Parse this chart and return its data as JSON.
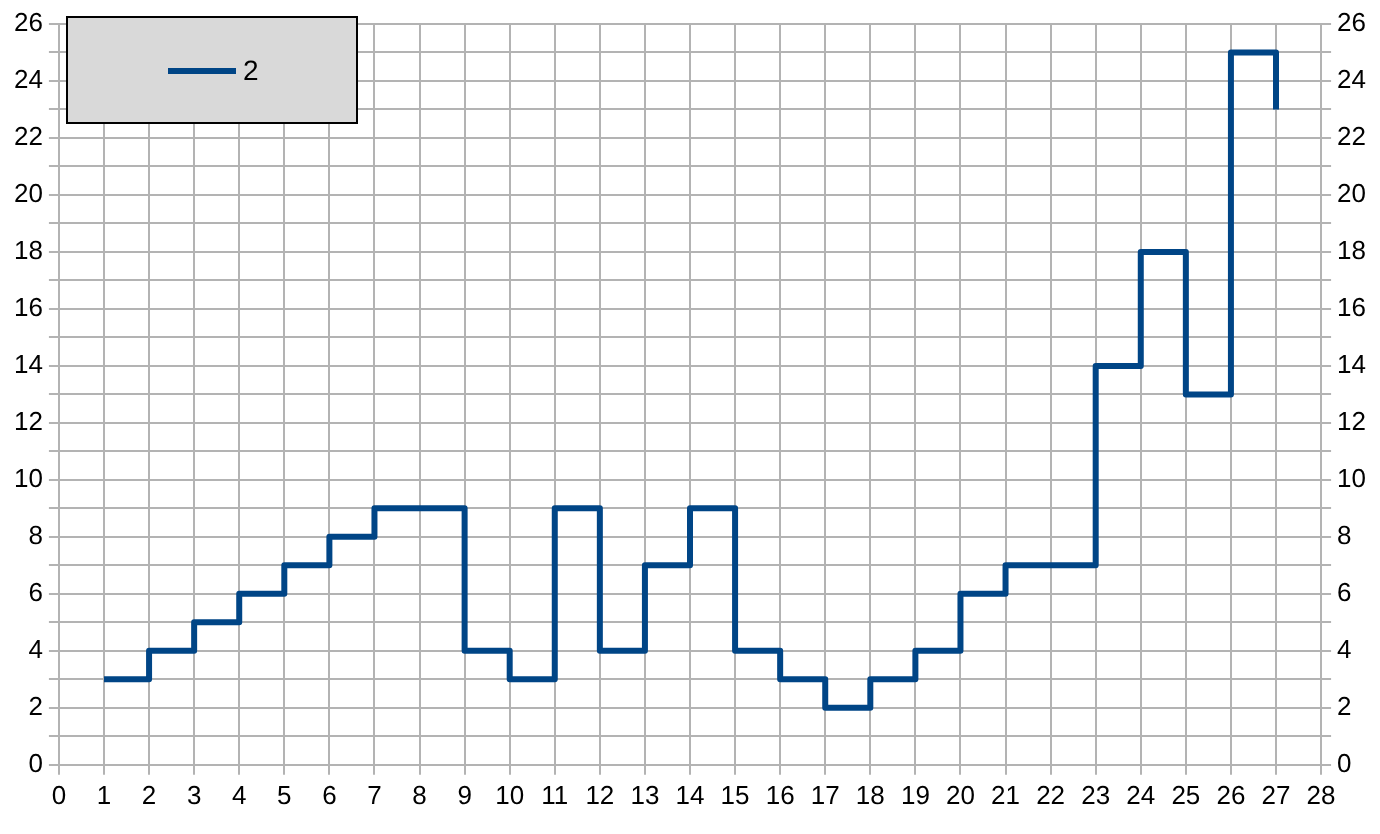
{
  "chart_data": {
    "type": "step",
    "x": [
      1,
      2,
      3,
      4,
      5,
      6,
      7,
      8,
      9,
      10,
      11,
      12,
      13,
      14,
      15,
      16,
      17,
      18,
      19,
      20,
      21,
      22,
      23,
      24,
      25,
      26,
      27
    ],
    "series": [
      {
        "name": "2",
        "color": "#004586",
        "values": [
          3,
          4,
          5,
          6,
          7,
          8,
          9,
          9,
          4,
          3,
          9,
          4,
          7,
          9,
          4,
          3,
          2,
          3,
          4,
          6,
          7,
          7,
          14,
          18,
          13,
          25,
          23
        ]
      }
    ],
    "xlim": [
      0,
      28
    ],
    "xticks": [
      0,
      1,
      2,
      3,
      4,
      5,
      6,
      7,
      8,
      9,
      10,
      11,
      12,
      13,
      14,
      15,
      16,
      17,
      18,
      19,
      20,
      21,
      22,
      23,
      24,
      25,
      26,
      27,
      28
    ],
    "ylim": [
      0,
      26
    ],
    "yticks": [
      0,
      {
        "value": 1,
        "label": null
      },
      2,
      {
        "value": 3,
        "label": null
      },
      4,
      {
        "value": 5,
        "label": null
      },
      6,
      {
        "value": 7,
        "label": null
      },
      8,
      {
        "value": 9,
        "label": null
      },
      10,
      {
        "value": 11,
        "label": null
      },
      12,
      {
        "value": 13,
        "label": null
      },
      14,
      {
        "value": 15,
        "label": null
      },
      16,
      {
        "value": 17,
        "label": null
      },
      18,
      {
        "value": 19,
        "label": null
      },
      20,
      {
        "value": 21,
        "label": null
      },
      22,
      {
        "value": 23,
        "label": null
      },
      24,
      {
        "value": 25,
        "label": null
      },
      26
    ],
    "y2lim": [
      0,
      26
    ],
    "y2ticks": [
      0,
      {
        "value": 1,
        "label": null
      },
      2,
      {
        "value": 3,
        "label": null
      },
      4,
      {
        "value": 5,
        "label": null
      },
      6,
      {
        "value": 7,
        "label": null
      },
      8,
      {
        "value": 9,
        "label": null
      },
      10,
      {
        "value": 11,
        "label": null
      },
      12,
      {
        "value": 13,
        "label": null
      },
      14,
      {
        "value": 15,
        "label": null
      },
      16,
      {
        "value": 17,
        "label": null
      },
      18,
      {
        "value": 19,
        "label": null
      },
      20,
      {
        "value": 21,
        "label": null
      },
      22,
      {
        "value": 23,
        "label": null
      },
      24,
      {
        "value": 25,
        "label": null
      },
      26
    ],
    "grid": true,
    "legend": "top left",
    "marker": "none",
    "line_style": "solid"
  }
}
